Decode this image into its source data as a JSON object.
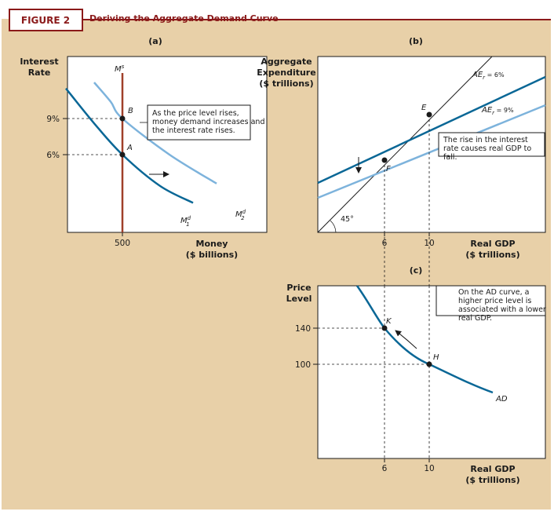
{
  "figure": {
    "number_label": "FIGURE 2",
    "title": "Deriving the Aggregate Demand Curve"
  },
  "colors": {
    "background": "#e8d0a8",
    "dark_curve": "#0a6796",
    "light_curve": "#7db3dc",
    "money_supply": "#a0402a",
    "frame": "#8b1a1a"
  },
  "chart_data": [
    {
      "panel": "(a)",
      "type": "line",
      "ylabel": "Interest Rate",
      "xlabel": "Money ($ billions)",
      "x_ticks": [
        "500"
      ],
      "y_ticks": [
        "9%",
        "6%"
      ],
      "series": [
        {
          "name": "Ms",
          "label": "M",
          "sup": "s",
          "x": [
            500,
            500
          ],
          "y": [
            13,
            0
          ]
        },
        {
          "name": "M1d",
          "label": "M",
          "sup": "d",
          "sub": "1",
          "x": [
            380,
            440,
            500,
            580,
            650
          ],
          "y": [
            11.5,
            8.6,
            6,
            3.4,
            2
          ]
        },
        {
          "name": "M2d",
          "label": "M",
          "sup": "d",
          "sub": "2",
          "x": [
            440,
            475,
            500,
            600,
            700
          ],
          "y": [
            12,
            10.4,
            9,
            6,
            3.6
          ]
        }
      ],
      "points": [
        {
          "label": "A",
          "x": 500,
          "y": 6
        },
        {
          "label": "B",
          "x": 500,
          "y": 9
        }
      ],
      "annotation": "As the price level rises, money demand increases and the interest rate rises."
    },
    {
      "panel": "(b)",
      "type": "line",
      "ylabel": "Aggregate Expenditure ($ trillions)",
      "xlabel": "Real GDP ($ trillions)",
      "x_ticks": [
        "6",
        "10"
      ],
      "series": [
        {
          "name": "AEr = 6%",
          "label": "AE",
          "sub": "r",
          "suffix": " = 6%"
        },
        {
          "name": "AEr = 9%",
          "label": "AE",
          "sub": "r",
          "suffix": " = 9%"
        },
        {
          "name": "45° line",
          "label": "45°"
        }
      ],
      "points": [
        {
          "label": "E",
          "x": 10,
          "y": 10
        },
        {
          "label": "F",
          "x": 6,
          "y": 6
        }
      ],
      "annotation": "The rise in the interest rate causes real GDP to fall."
    },
    {
      "panel": "(c)",
      "type": "line",
      "ylabel": "Price Level",
      "xlabel": "Real GDP ($ trillions)",
      "x_ticks": [
        "6",
        "10"
      ],
      "y_ticks": [
        "140",
        "100"
      ],
      "series": [
        {
          "name": "AD",
          "x": [
            3.4,
            6,
            10,
            16
          ],
          "y": [
            200,
            140,
            100,
            70
          ]
        }
      ],
      "points": [
        {
          "label": "K",
          "x": 6,
          "y": 140
        },
        {
          "label": "H",
          "x": 10,
          "y": 100
        }
      ],
      "annotation": "On the AD curve, a higher price level is associated with a lower real GDP."
    }
  ]
}
